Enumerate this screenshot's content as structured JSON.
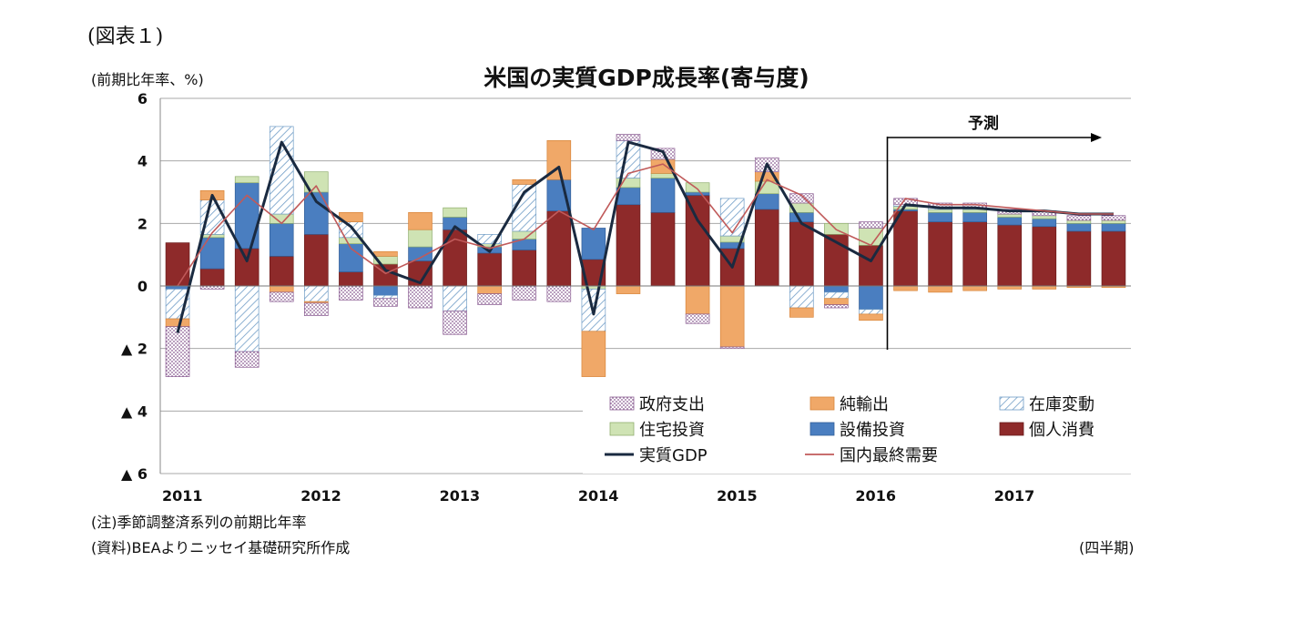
{
  "figure_label": "(図表１)",
  "notes": {
    "note": "(注)季節調整済系列の前期比年率",
    "source": "(資料)BEAよりニッセイ基礎研究所作成"
  },
  "colors": {
    "gov": "#8a5c92",
    "netexp": "#f0a868",
    "inventory": "#6f9cc6",
    "residential": "#cfe3b4",
    "investment": "#4a7ec0",
    "consumption": "#8e2a2a",
    "gdp_line": "#1a2a40",
    "domestic_line": "#c05a5a",
    "forecast": "#000000"
  },
  "chart_data": {
    "type": "bar",
    "stacked": true,
    "title": "米国の実質GDP成長率(寄与度)",
    "ylabel": "(前期比年率、%)",
    "xlabel": "(四半期)",
    "ylim": [
      -6,
      6
    ],
    "yticks": [
      6,
      4,
      2,
      0,
      -2,
      -4,
      -6
    ],
    "ytick_labels": [
      "6",
      "4",
      "2",
      "0",
      "▲ 2",
      "▲ 4",
      "▲ 6"
    ],
    "year_labels": [
      {
        "label": "2011",
        "start_index": 0
      },
      {
        "label": "2012",
        "start_index": 4
      },
      {
        "label": "2013",
        "start_index": 8
      },
      {
        "label": "2014",
        "start_index": 12
      },
      {
        "label": "2015",
        "start_index": 16
      },
      {
        "label": "2016",
        "start_index": 20
      },
      {
        "label": "2017",
        "start_index": 24
      }
    ],
    "categories": [
      "2011Q1",
      "2011Q2",
      "2011Q3",
      "2011Q4",
      "2012Q1",
      "2012Q2",
      "2012Q3",
      "2012Q4",
      "2013Q1",
      "2013Q2",
      "2013Q3",
      "2013Q4",
      "2014Q1",
      "2014Q2",
      "2014Q3",
      "2014Q4",
      "2015Q1",
      "2015Q2",
      "2015Q3",
      "2015Q4",
      "2016Q1",
      "2016Q2",
      "2016Q3",
      "2016Q4",
      "2017Q1",
      "2017Q2",
      "2017Q3",
      "2017Q4"
    ],
    "forecast": {
      "label": "予測",
      "start_index": 21
    },
    "series": [
      {
        "name": "個人消費",
        "key": "consumption",
        "values": [
          1.38,
          0.55,
          1.2,
          0.95,
          1.65,
          0.45,
          0.7,
          0.8,
          1.8,
          1.05,
          1.15,
          2.4,
          0.85,
          2.6,
          2.35,
          2.9,
          1.2,
          2.45,
          2.05,
          1.65,
          1.3,
          2.4,
          2.05,
          2.05,
          1.95,
          1.9,
          1.75,
          1.75
        ]
      },
      {
        "name": "設備投資",
        "key": "investment",
        "values": [
          -0.1,
          1.0,
          2.1,
          1.05,
          1.35,
          0.9,
          -0.3,
          0.45,
          0.4,
          0.2,
          0.35,
          1.0,
          1.0,
          0.55,
          1.1,
          0.1,
          0.2,
          0.5,
          0.3,
          -0.2,
          -0.75,
          0.05,
          0.3,
          0.3,
          0.25,
          0.25,
          0.25,
          0.25
        ]
      },
      {
        "name": "住宅投資",
        "key": "residential",
        "values": [
          0.0,
          0.1,
          0.2,
          0.3,
          0.65,
          0.2,
          0.25,
          0.55,
          0.3,
          0.1,
          0.25,
          0.0,
          -0.1,
          0.3,
          0.15,
          0.3,
          0.2,
          0.4,
          0.3,
          0.35,
          0.55,
          0.1,
          0.1,
          0.1,
          0.1,
          0.1,
          0.1,
          0.1
        ]
      },
      {
        "name": "在庫変動",
        "key": "inventory",
        "values": [
          -0.95,
          1.1,
          -2.1,
          2.8,
          -0.5,
          0.5,
          -0.1,
          0.0,
          -0.8,
          0.3,
          1.5,
          0.0,
          -1.35,
          1.2,
          0.0,
          0.0,
          1.2,
          0.0,
          -0.7,
          -0.2,
          -0.15,
          0.05,
          0.05,
          0.05,
          0.0,
          0.0,
          0.0,
          0.0
        ]
      },
      {
        "name": "純輸出",
        "key": "netexp",
        "values": [
          -0.25,
          0.3,
          0.0,
          -0.2,
          -0.05,
          0.3,
          0.15,
          0.55,
          0.0,
          -0.25,
          0.15,
          1.25,
          -1.45,
          -0.25,
          0.45,
          -0.9,
          -1.95,
          0.3,
          -0.3,
          -0.2,
          -0.2,
          -0.15,
          -0.2,
          -0.15,
          -0.1,
          -0.1,
          -0.05,
          -0.05
        ]
      },
      {
        "name": "政府支出",
        "key": "gov",
        "values": [
          -1.6,
          -0.1,
          -0.5,
          -0.3,
          -0.4,
          -0.45,
          -0.25,
          -0.7,
          -0.75,
          -0.35,
          -0.45,
          -0.5,
          0.0,
          0.2,
          0.35,
          -0.3,
          -0.05,
          0.45,
          0.3,
          -0.1,
          0.2,
          0.2,
          0.15,
          0.15,
          0.15,
          0.15,
          0.15,
          0.15
        ]
      }
    ],
    "lines": [
      {
        "name": "実質GDP",
        "key": "gdp_line",
        "width": 3,
        "values": [
          -1.5,
          2.9,
          0.8,
          4.6,
          2.7,
          1.9,
          0.5,
          0.1,
          1.9,
          1.1,
          3.0,
          3.8,
          -0.9,
          4.6,
          4.3,
          2.1,
          0.6,
          3.9,
          2.0,
          1.4,
          0.8,
          2.6,
          2.5,
          2.5,
          2.4,
          2.4,
          2.3,
          2.3
        ]
      },
      {
        "name": "国内最終需要",
        "key": "domestic_line",
        "width": 1.6,
        "values": [
          0.0,
          1.7,
          2.9,
          2.0,
          3.2,
          1.2,
          0.4,
          0.9,
          1.5,
          1.2,
          1.5,
          2.4,
          1.8,
          3.6,
          3.9,
          3.1,
          1.7,
          3.4,
          2.9,
          1.8,
          1.3,
          2.8,
          2.6,
          2.6,
          2.5,
          2.4,
          2.3,
          2.3
        ]
      }
    ],
    "legend_placement": "bottom-right",
    "legend": [
      {
        "name": "政府支出",
        "key": "gov",
        "kind": "box"
      },
      {
        "name": "純輸出",
        "key": "netexp",
        "kind": "box"
      },
      {
        "name": "在庫変動",
        "key": "inventory",
        "kind": "box"
      },
      {
        "name": "住宅投資",
        "key": "residential",
        "kind": "box"
      },
      {
        "name": "設備投資",
        "key": "investment",
        "kind": "box"
      },
      {
        "name": "個人消費",
        "key": "consumption",
        "kind": "box"
      },
      {
        "name": "実質GDP",
        "key": "gdp_line",
        "kind": "line"
      },
      {
        "name": "国内最終需要",
        "key": "domestic_line",
        "kind": "line"
      }
    ],
    "grid": true
  }
}
